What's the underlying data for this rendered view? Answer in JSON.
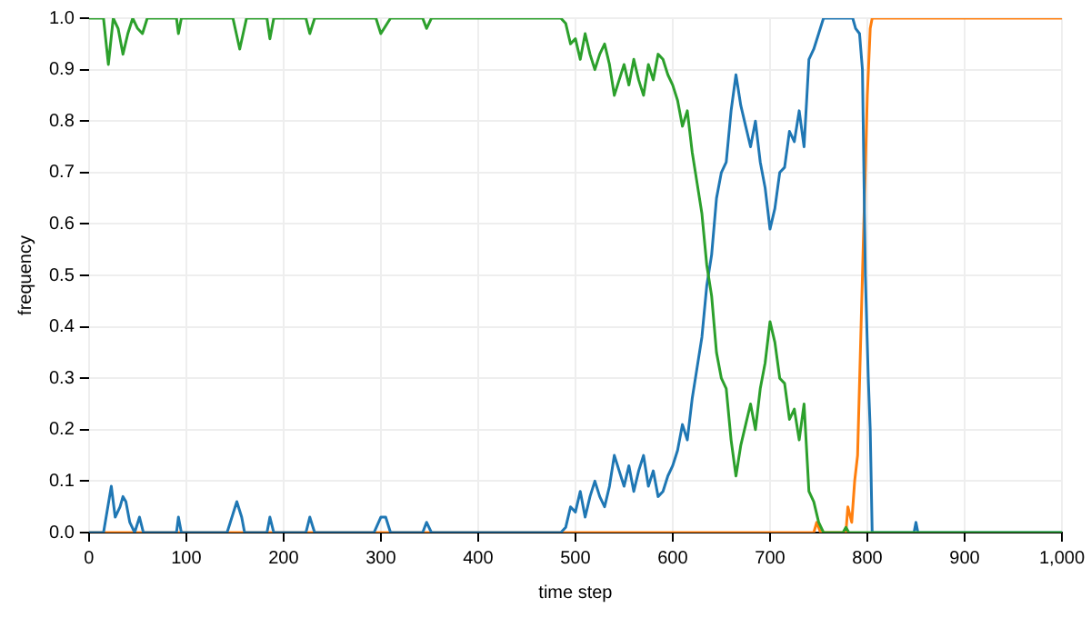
{
  "chart_data": {
    "type": "line",
    "xlabel": "time step",
    "ylabel": "frequency",
    "xlim": [
      0,
      1000
    ],
    "ylim": [
      0,
      1
    ],
    "xticks": [
      0,
      100,
      200,
      300,
      400,
      500,
      600,
      700,
      800,
      900,
      {
        "value": 1000,
        "label": "1,000"
      }
    ],
    "yticks": [
      {
        "value": 0,
        "label": "0.0"
      },
      {
        "value": 0.1,
        "label": "0.1"
      },
      {
        "value": 0.2,
        "label": "0.2"
      },
      {
        "value": 0.3,
        "label": "0.3"
      },
      {
        "value": 0.4,
        "label": "0.4"
      },
      {
        "value": 0.5,
        "label": "0.5"
      },
      {
        "value": 0.6,
        "label": "0.6"
      },
      {
        "value": 0.7,
        "label": "0.7"
      },
      {
        "value": 0.8,
        "label": "0.8"
      },
      {
        "value": 0.9,
        "label": "0.9"
      },
      {
        "value": 1,
        "label": "1.0"
      }
    ],
    "grid": true,
    "legend": false,
    "marker": "none",
    "line_style": "solid",
    "series": [
      {
        "color": "#2ca02c",
        "x": [
          0,
          15,
          20,
          25,
          30,
          35,
          40,
          45,
          50,
          55,
          60,
          90,
          92,
          95,
          148,
          155,
          162,
          183,
          186,
          190,
          223,
          227,
          232,
          295,
          300,
          310,
          343,
          347,
          352,
          480,
          485,
          490,
          495,
          500,
          505,
          510,
          515,
          520,
          525,
          530,
          535,
          540,
          545,
          550,
          555,
          560,
          565,
          570,
          575,
          580,
          585,
          590,
          595,
          600,
          605,
          610,
          615,
          620,
          625,
          630,
          635,
          640,
          645,
          650,
          655,
          660,
          665,
          670,
          675,
          680,
          685,
          690,
          695,
          700,
          705,
          710,
          715,
          720,
          725,
          730,
          735,
          740,
          745,
          750,
          755,
          775,
          778,
          781,
          800,
          1000
        ],
        "values": [
          1,
          1,
          0.91,
          1,
          0.98,
          0.93,
          0.97,
          1,
          0.98,
          0.97,
          1,
          1,
          0.97,
          1,
          1,
          0.94,
          1,
          1,
          0.96,
          1,
          1,
          0.97,
          1,
          1,
          0.97,
          1,
          1,
          0.98,
          1,
          1,
          1,
          0.99,
          0.95,
          0.96,
          0.92,
          0.97,
          0.93,
          0.9,
          0.93,
          0.95,
          0.91,
          0.85,
          0.88,
          0.91,
          0.87,
          0.92,
          0.88,
          0.85,
          0.91,
          0.88,
          0.93,
          0.92,
          0.89,
          0.87,
          0.84,
          0.79,
          0.82,
          0.74,
          0.68,
          0.62,
          0.52,
          0.46,
          0.35,
          0.3,
          0.28,
          0.18,
          0.11,
          0.17,
          0.21,
          0.25,
          0.2,
          0.28,
          0.33,
          0.41,
          0.37,
          0.3,
          0.29,
          0.22,
          0.24,
          0.18,
          0.25,
          0.08,
          0.06,
          0.02,
          0,
          0,
          0.01,
          0,
          0,
          0
        ]
      },
      {
        "color": "#1f77b4",
        "x": [
          0,
          15,
          23,
          27,
          32,
          35,
          38,
          42,
          47,
          52,
          56,
          90,
          92,
          95,
          142,
          152,
          157,
          160,
          183,
          186,
          190,
          223,
          227,
          232,
          293,
          300,
          305,
          310,
          343,
          347,
          352,
          480,
          485,
          490,
          495,
          500,
          505,
          510,
          515,
          520,
          525,
          530,
          535,
          540,
          545,
          550,
          555,
          560,
          565,
          570,
          575,
          580,
          585,
          590,
          595,
          600,
          605,
          610,
          615,
          620,
          625,
          630,
          635,
          640,
          645,
          650,
          655,
          660,
          665,
          670,
          675,
          680,
          685,
          690,
          695,
          700,
          705,
          710,
          715,
          720,
          725,
          730,
          735,
          740,
          745,
          750,
          755,
          785,
          788,
          792,
          795,
          798,
          801,
          803,
          805,
          848,
          850,
          852,
          1000
        ],
        "values": [
          0,
          0,
          0.09,
          0.03,
          0.05,
          0.07,
          0.06,
          0.02,
          0,
          0.03,
          0,
          0,
          0.03,
          0,
          0,
          0.06,
          0.03,
          0,
          0,
          0.03,
          0,
          0,
          0.03,
          0,
          0,
          0.03,
          0.03,
          0,
          0,
          0.02,
          0,
          0,
          0,
          0.01,
          0.05,
          0.04,
          0.08,
          0.03,
          0.07,
          0.1,
          0.07,
          0.05,
          0.09,
          0.15,
          0.12,
          0.09,
          0.13,
          0.08,
          0.12,
          0.15,
          0.09,
          0.12,
          0.07,
          0.08,
          0.11,
          0.13,
          0.16,
          0.21,
          0.18,
          0.26,
          0.32,
          0.38,
          0.48,
          0.54,
          0.65,
          0.7,
          0.72,
          0.82,
          0.89,
          0.83,
          0.79,
          0.75,
          0.8,
          0.72,
          0.67,
          0.59,
          0.63,
          0.7,
          0.71,
          0.78,
          0.76,
          0.82,
          0.75,
          0.92,
          0.94,
          0.97,
          1,
          1,
          0.98,
          0.97,
          0.9,
          0.5,
          0.3,
          0.2,
          0,
          0,
          0.02,
          0,
          0
        ]
      },
      {
        "color": "#ff7f0e",
        "x": [
          0,
          745,
          748,
          752,
          778,
          780,
          784,
          787,
          790,
          795,
          800,
          803,
          805,
          1000
        ],
        "values": [
          0,
          0,
          0.02,
          0,
          0,
          0.05,
          0.02,
          0.1,
          0.15,
          0.5,
          0.85,
          0.98,
          1,
          1
        ]
      }
    ]
  }
}
